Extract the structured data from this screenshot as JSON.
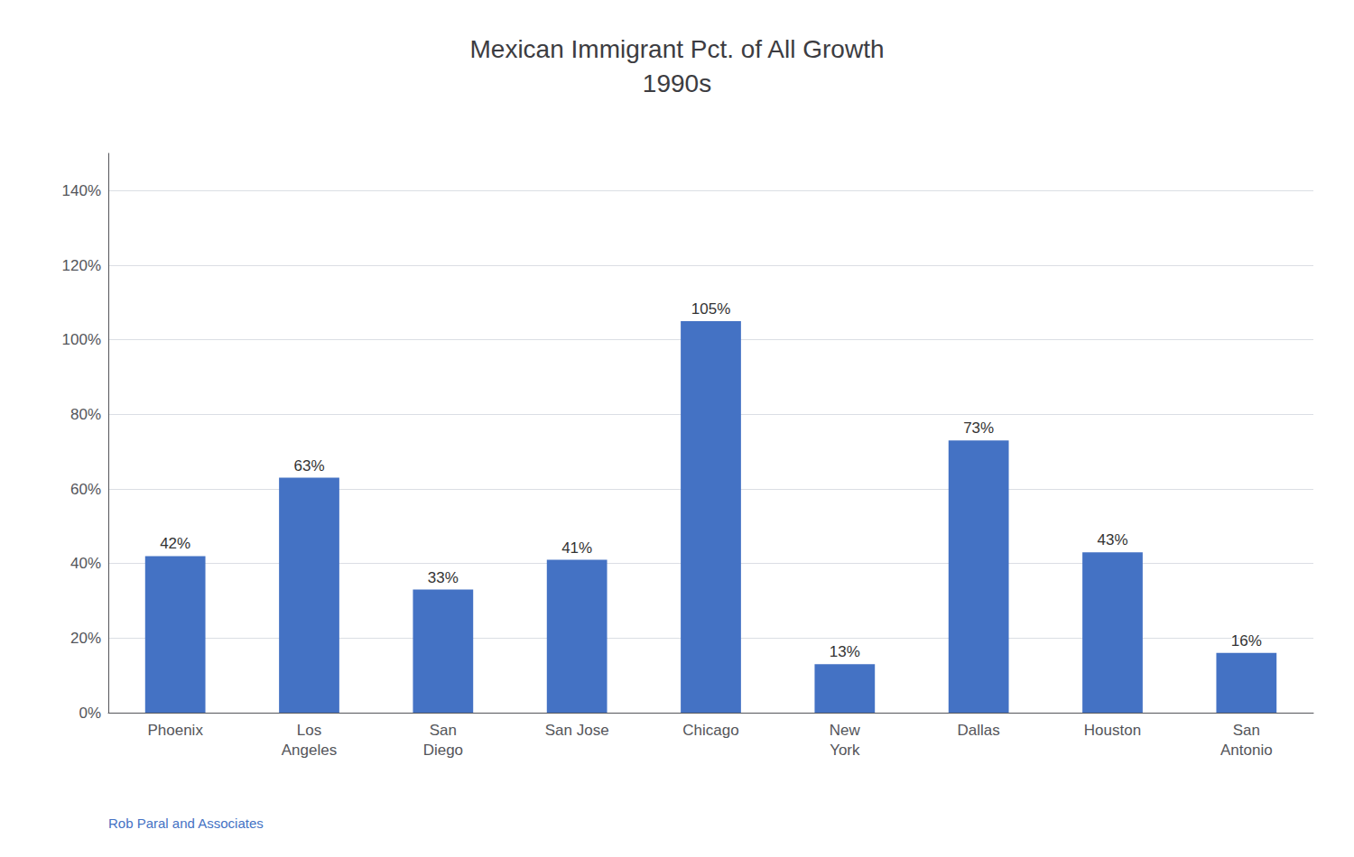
{
  "chart_data": {
    "type": "bar",
    "title": "Mexican Immigrant Pct. of All Growth\n1990s",
    "categories": [
      "Phoenix",
      "Los\nAngeles",
      "San\nDiego",
      "San Jose",
      "Chicago",
      "New\nYork",
      "Dallas",
      "Houston",
      "San\nAntonio"
    ],
    "values": [
      42,
      63,
      33,
      41,
      105,
      13,
      73,
      43,
      16
    ],
    "value_labels": [
      "42%",
      "63%",
      "33%",
      "41%",
      "105%",
      "13%",
      "73%",
      "43%",
      "16%"
    ],
    "data_labels": true,
    "color": "#4472C4",
    "ylim": [
      0,
      150
    ],
    "yticks": [
      {
        "value": 0,
        "label": "0%"
      },
      {
        "value": 20,
        "label": "20%"
      },
      {
        "value": 40,
        "label": "40%"
      },
      {
        "value": 60,
        "label": "60%"
      },
      {
        "value": 80,
        "label": "80%"
      },
      {
        "value": 100,
        "label": "100%"
      },
      {
        "value": 120,
        "label": "120%"
      },
      {
        "value": 140,
        "label": "140%"
      }
    ],
    "grid": true,
    "annotations": [
      {
        "text": "Rob Paral and Associates",
        "color": "#4472C4"
      }
    ]
  }
}
